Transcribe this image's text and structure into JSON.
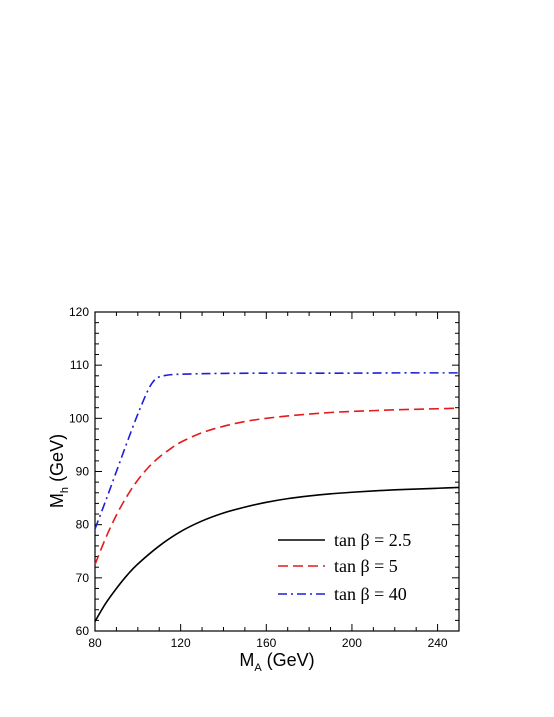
{
  "chart_data": {
    "type": "line",
    "xlabel": {
      "main": "M",
      "sub": "A",
      "rest": " (GeV)"
    },
    "ylabel": {
      "main": "M",
      "sub": "h",
      "rest": " (GeV)"
    },
    "xlim": [
      80,
      250
    ],
    "ylim": [
      60,
      120
    ],
    "xticks": [
      80,
      120,
      160,
      200,
      240
    ],
    "yticks": [
      60,
      70,
      80,
      90,
      100,
      110,
      120
    ],
    "grid": false,
    "legend_position": "bottom-right",
    "series": [
      {
        "name": "tan β = 2.5",
        "color": "#000000",
        "dash": "solid",
        "x": [
          80,
          85,
          90,
          95,
          100,
          110,
          120,
          130,
          140,
          150,
          160,
          170,
          180,
          190,
          200,
          210,
          220,
          230,
          240,
          250
        ],
        "y": [
          61.8,
          65.2,
          68.0,
          70.5,
          72.6,
          76.0,
          78.7,
          80.7,
          82.2,
          83.3,
          84.2,
          84.9,
          85.4,
          85.8,
          86.1,
          86.35,
          86.55,
          86.7,
          86.85,
          87.0
        ]
      },
      {
        "name": "tan β = 5",
        "color": "#e41a1c",
        "dash": "dashed",
        "x": [
          80,
          85,
          90,
          95,
          100,
          105,
          110,
          115,
          120,
          130,
          140,
          150,
          160,
          170,
          180,
          190,
          200,
          210,
          220,
          230,
          240,
          250
        ],
        "y": [
          72.5,
          77.5,
          81.8,
          85.4,
          88.4,
          90.8,
          92.7,
          94.2,
          95.5,
          97.3,
          98.5,
          99.4,
          100.0,
          100.45,
          100.8,
          101.1,
          101.3,
          101.45,
          101.6,
          101.7,
          101.8,
          101.9
        ]
      },
      {
        "name": "tan β = 40",
        "color": "#1f1fd6",
        "dash": "dashdot",
        "x": [
          80,
          85,
          90,
          95,
          100,
          105,
          108,
          110,
          112,
          115,
          120,
          130,
          140,
          160,
          180,
          200,
          220,
          240,
          250
        ],
        "y": [
          79.2,
          84.5,
          90.0,
          95.5,
          100.8,
          105.5,
          107.3,
          107.8,
          108.0,
          108.2,
          108.3,
          108.4,
          108.45,
          108.5,
          108.5,
          108.5,
          108.55,
          108.55,
          108.55
        ]
      }
    ]
  }
}
